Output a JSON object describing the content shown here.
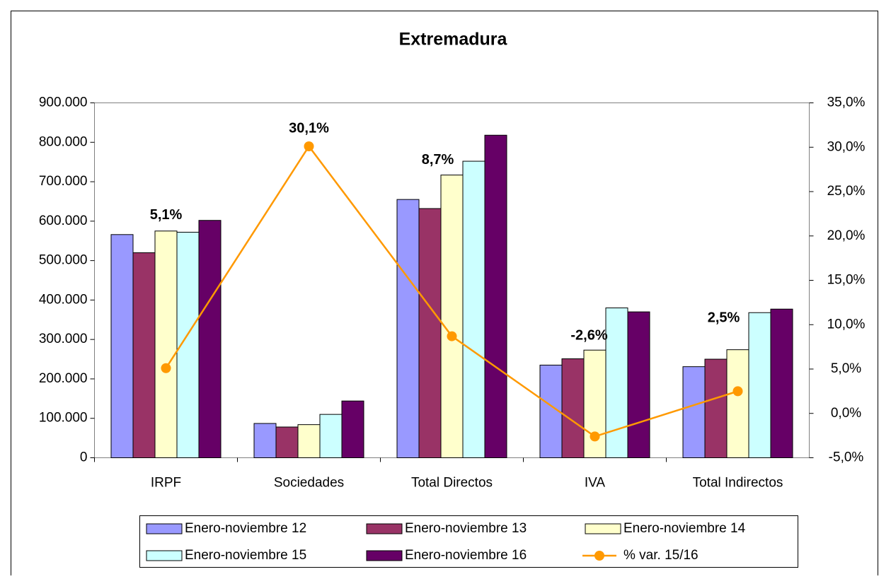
{
  "chart_data": {
    "type": "bar",
    "title": "Extremadura",
    "categories": [
      "IRPF",
      "Sociedades",
      "Total Directos",
      "IVA",
      "Total Indirectos"
    ],
    "series": [
      {
        "name": "Enero-noviembre 12",
        "color": "#9999ff",
        "values": [
          566000,
          87000,
          655000,
          235000,
          231000
        ]
      },
      {
        "name": "Enero-noviembre 13",
        "color": "#993366",
        "values": [
          520000,
          78000,
          632000,
          251000,
          250000
        ]
      },
      {
        "name": "Enero-noviembre 14",
        "color": "#ffffcc",
        "values": [
          575000,
          84000,
          717000,
          273000,
          274000
        ]
      },
      {
        "name": "Enero-noviembre 15",
        "color": "#ccffff",
        "values": [
          572000,
          110000,
          752000,
          380000,
          368000
        ]
      },
      {
        "name": "Enero-noviembre 16",
        "color": "#660066",
        "values": [
          602000,
          144000,
          818000,
          370000,
          377000
        ]
      },
      {
        "name": "% var. 15/16",
        "type": "line",
        "axis": "y2",
        "color": "#ff9900",
        "values": [
          5.1,
          30.1,
          8.7,
          -2.6,
          2.5
        ],
        "value_labels": [
          "5,1%",
          "30,1%",
          "8,7%",
          "-2,6%",
          "2,5%"
        ]
      }
    ],
    "ylim": [
      0,
      900000
    ],
    "yticks": [
      0,
      {
        "value": 100000,
        "label": "100.000"
      },
      {
        "value": 200000,
        "label": "200.000"
      },
      {
        "value": 300000,
        "label": "300.000"
      },
      {
        "value": 400000,
        "label": "400.000"
      },
      {
        "value": 500000,
        "label": "500.000"
      },
      {
        "value": 600000,
        "label": "600.000"
      },
      {
        "value": 700000,
        "label": "700.000"
      },
      {
        "value": 800000,
        "label": "800.000"
      },
      {
        "value": 900000,
        "label": "900.000"
      }
    ],
    "y2lim": [
      -5,
      35
    ],
    "y2ticks": [
      {
        "value": -5,
        "label": "-5,0%"
      },
      {
        "value": 0,
        "label": "0,0%"
      },
      {
        "value": 5,
        "label": "5,0%"
      },
      {
        "value": 10,
        "label": "10,0%"
      },
      {
        "value": 15,
        "label": "15,0%"
      },
      {
        "value": 20,
        "label": "20,0%"
      },
      {
        "value": 25,
        "label": "25,0%"
      },
      {
        "value": 30,
        "label": "30,0%"
      },
      {
        "value": 35,
        "label": "35,0%"
      }
    ],
    "grid": false
  }
}
